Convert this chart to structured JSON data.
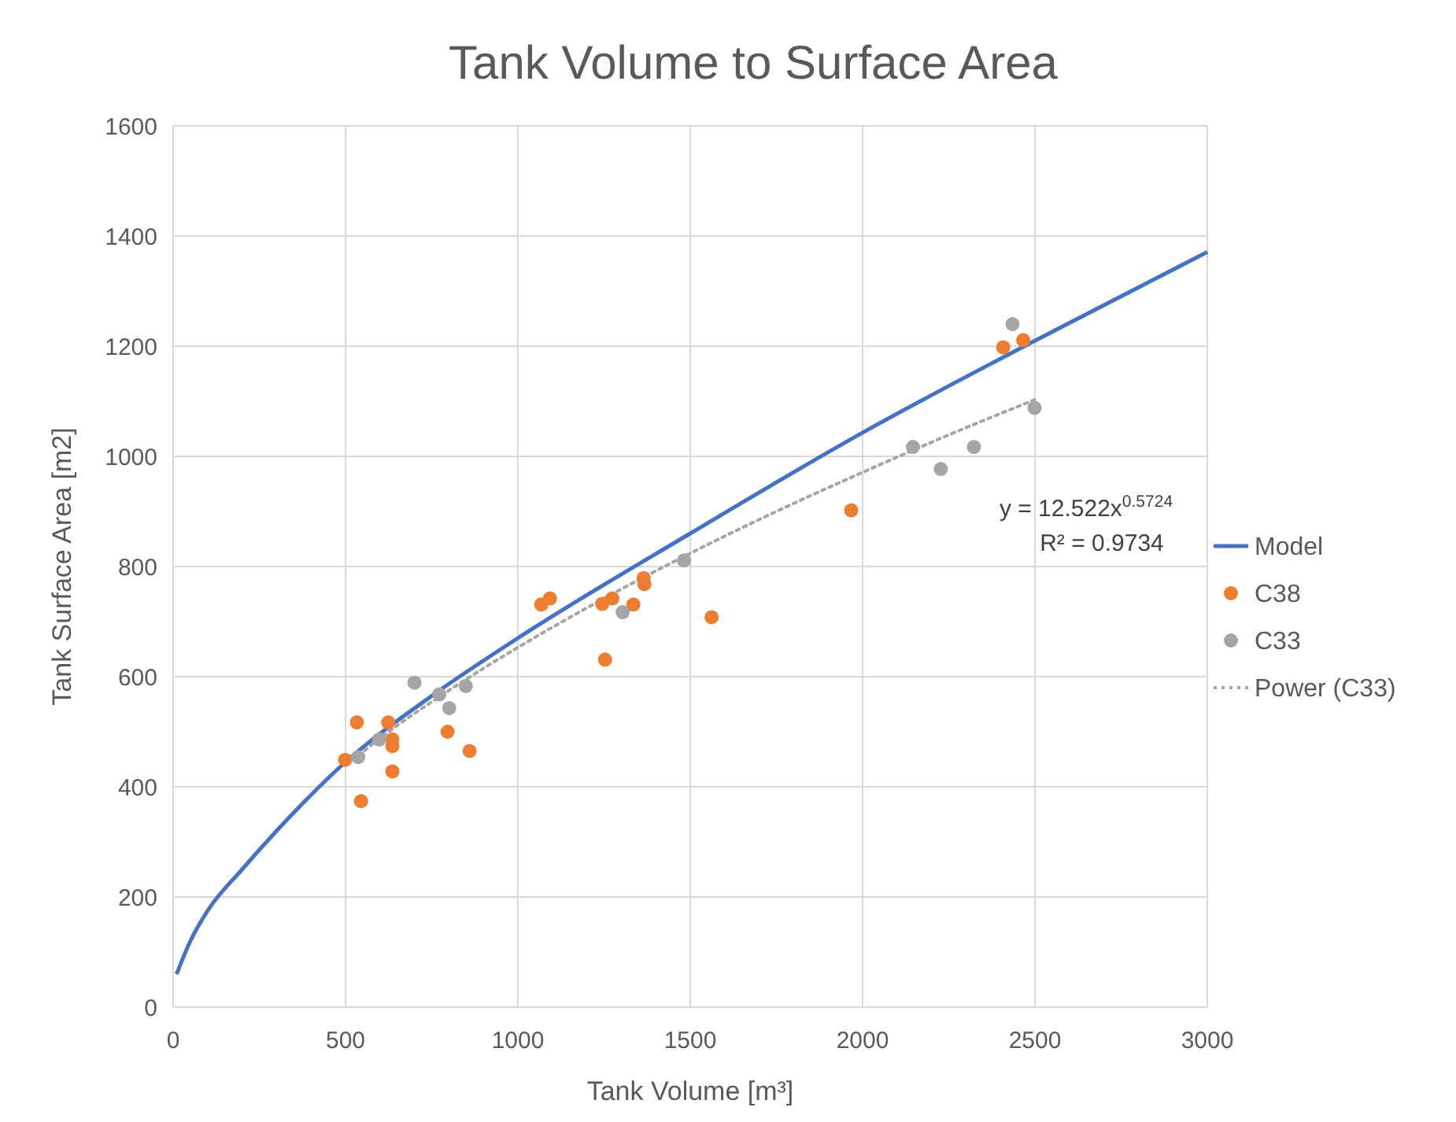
{
  "chart_data": {
    "type": "scatter",
    "title": "Tank Volume to Surface Area",
    "xlabel": "Tank Volume [m³]",
    "ylabel": "Tank Surface Area [m2]",
    "xlim": [
      0,
      3000
    ],
    "ylim": [
      0,
      1600
    ],
    "xticks": [
      0,
      500,
      1000,
      1500,
      2000,
      2500,
      3000
    ],
    "yticks": [
      0,
      200,
      400,
      600,
      800,
      1000,
      1200,
      1400,
      1600
    ],
    "grid": true,
    "legend": "right",
    "marker": "circle",
    "annotations": [
      "y = 12.522x$^{0.5724}$",
      "R² = 0.9734"
    ],
    "series": [
      {
        "name": "Model",
        "type": "line",
        "color": "#4472c4",
        "marker": "none",
        "line_style": "solid",
        "x": [
          10,
          50,
          100,
          200,
          300,
          500,
          750,
          1000,
          1500,
          2000,
          2500,
          3000
        ],
        "values": [
          60,
          120,
          175,
          250,
          320,
          445,
          565,
          670,
          860,
          1043,
          1210,
          1371
        ]
      },
      {
        "name": "C38",
        "type": "scatter",
        "color": "#ed7d31",
        "x": [
          533,
          624,
          636,
          636,
          499,
          636,
          545,
          796,
          860,
          1068,
          1093,
          1245,
          1274,
          1335,
          1365,
          1367,
          1253,
          1562,
          1967,
          2408,
          2466
        ],
        "values": [
          517,
          517,
          486,
          474,
          449,
          428,
          374,
          500,
          465,
          731,
          742,
          732,
          742,
          731,
          779,
          768,
          631,
          708,
          902,
          1198,
          1211
        ]
      },
      {
        "name": "C33",
        "type": "scatter",
        "color": "#a5a5a5",
        "x": [
          537,
          598,
          700,
          772,
          801,
          849,
          1304,
          1482,
          2146,
          2227,
          2323,
          2435,
          2499
        ],
        "values": [
          454,
          486,
          589,
          568,
          543,
          583,
          717,
          811,
          1017,
          977,
          1017,
          1240,
          1088
        ]
      },
      {
        "name": "Power (C33)",
        "type": "line",
        "color": "#a5a5a5",
        "marker": "none",
        "line_style": "dotted",
        "x": [
          537,
          600,
          800,
          1000,
          1250,
          1500,
          1750,
          2000,
          2250,
          2500
        ],
        "values": [
          457,
          488,
          575,
          653,
          742,
          824,
          900,
          971,
          1039,
          1103
        ]
      }
    ]
  }
}
